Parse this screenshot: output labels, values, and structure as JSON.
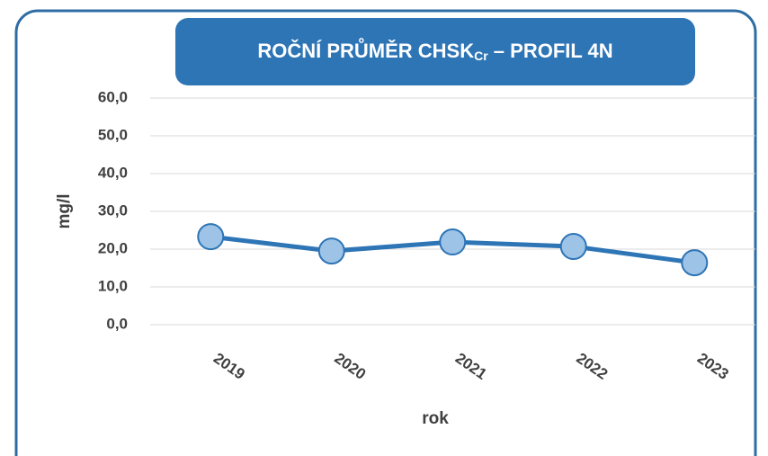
{
  "chart_data": {
    "type": "line",
    "title": "ROČNÍ PRŮMĚR CHSK",
    "title_subscript": "Cr",
    "title_suffix": " – PROFIL 4N",
    "x_label": "rok",
    "y_label": "mg/l",
    "categories": [
      "2019",
      "2020",
      "2021",
      "2022",
      "2023"
    ],
    "series": [
      {
        "name": "CHSK",
        "color": "#2e75b6",
        "values": [
          23.3,
          19.5,
          21.9,
          20.7,
          16.4
        ]
      }
    ],
    "ylim": [
      0,
      60
    ],
    "yticks": [
      {
        "value": 0,
        "label": "0,0"
      },
      {
        "value": 10,
        "label": "10,0"
      },
      {
        "value": 20,
        "label": "20,0"
      },
      {
        "value": 30,
        "label": "30,0"
      },
      {
        "value": 40,
        "label": "40,0"
      },
      {
        "value": 50,
        "label": "50,0"
      },
      {
        "value": 60,
        "label": "60,0"
      }
    ],
    "grid": true
  }
}
